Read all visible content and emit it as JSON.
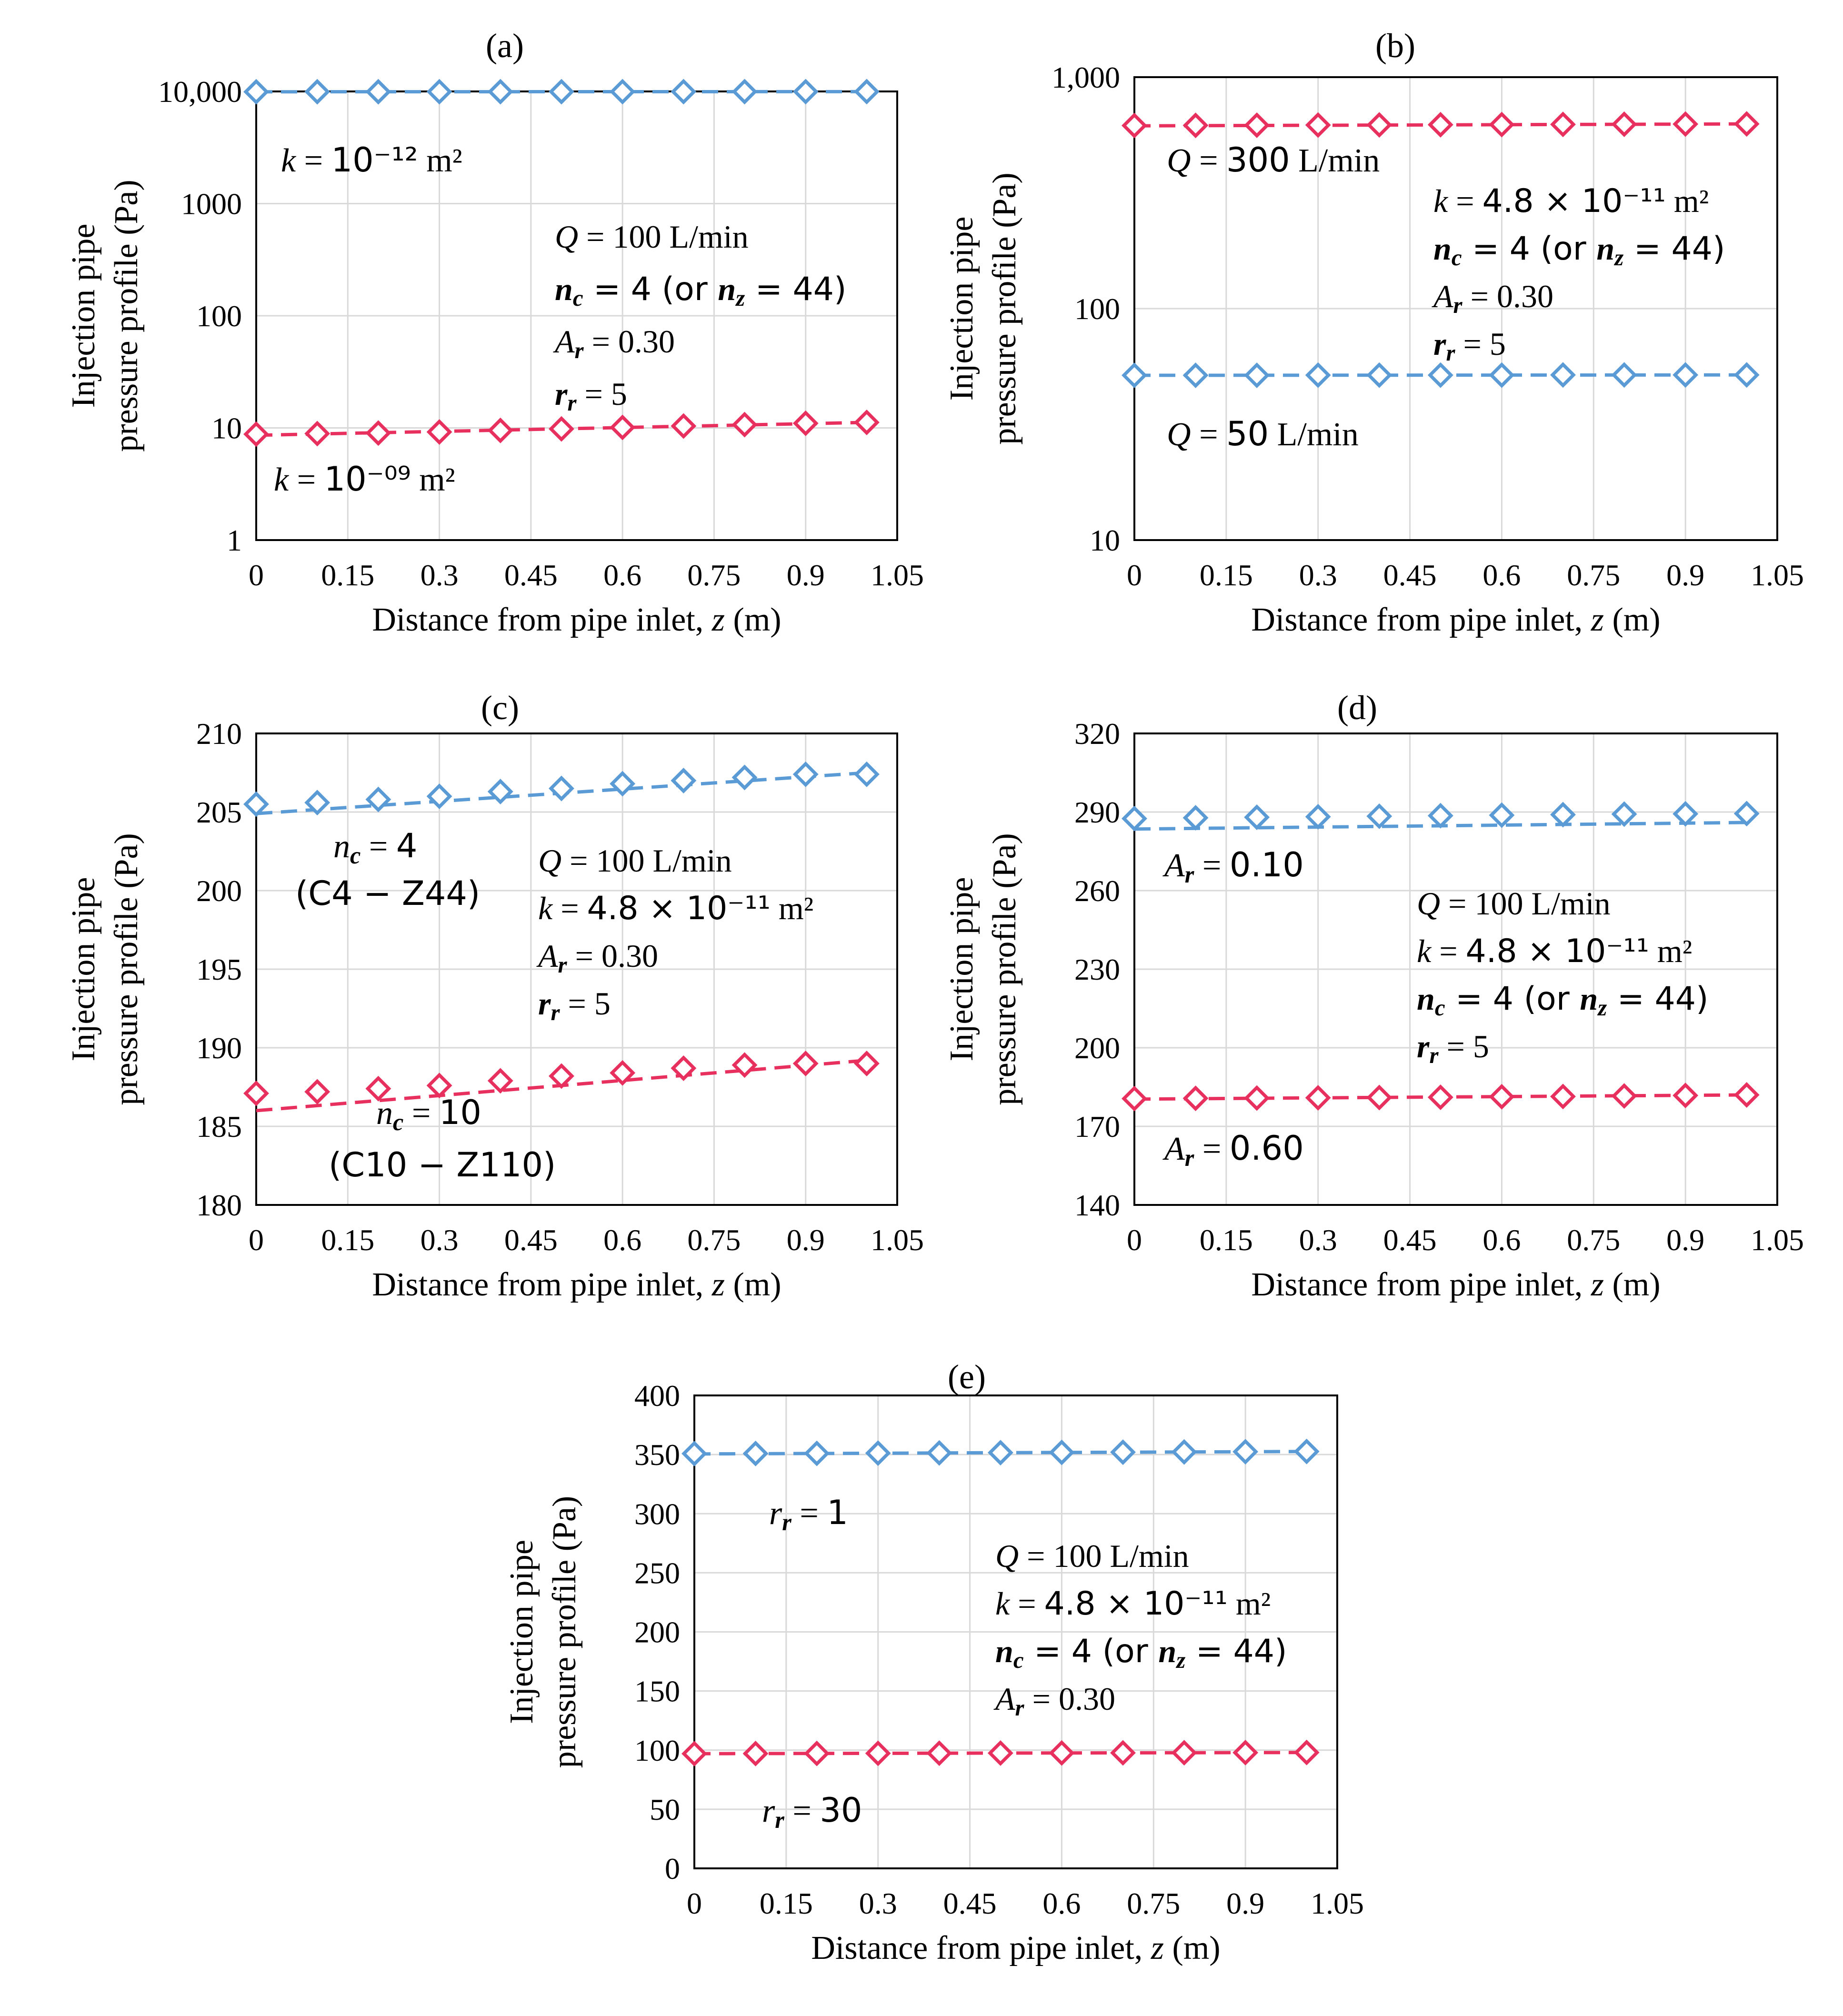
{
  "colors": {
    "blue": "#5b9bd5",
    "red": "#e8305f",
    "grid": "#d9d9d9",
    "frame": "#000000"
  },
  "x_ticks": [
    "0",
    "0.15",
    "0.3",
    "0.45",
    "0.6",
    "0.75",
    "0.9",
    "1.05"
  ],
  "chart_data": [
    {
      "type": "line",
      "panel_label": "(a)",
      "scale": "log",
      "xlabel": "Distance from pipe inlet, z (m)",
      "ylabel_line1": "Injection pipe",
      "ylabel_line2": "pressure profile (Pa)",
      "xlim": [
        0,
        1.05
      ],
      "ylim": [
        1,
        10000
      ],
      "y_ticks": [
        {
          "value": 1,
          "label": "1"
        },
        {
          "value": 10,
          "label": "10"
        },
        {
          "value": 100,
          "label": "100"
        },
        {
          "value": 1000,
          "label": "1000"
        },
        {
          "value": 10000,
          "label": "10,000"
        }
      ],
      "x": [
        0,
        0.1,
        0.2,
        0.3,
        0.4,
        0.5,
        0.6,
        0.7,
        0.8,
        0.9,
        1.0
      ],
      "series": [
        {
          "name": "k = 10^-12 m²",
          "color": "blue",
          "values": [
            9930,
            9940,
            9940,
            9945,
            9950,
            9950,
            9955,
            9955,
            9960,
            9960,
            9965
          ],
          "fit": [
            9930,
            9965
          ]
        },
        {
          "name": "k = 10^-09 m²",
          "color": "red",
          "values": [
            8.8,
            8.9,
            9.0,
            9.2,
            9.5,
            9.8,
            10.1,
            10.4,
            10.7,
            11.0,
            11.2
          ],
          "fit": [
            8.6,
            11.2
          ]
        }
      ],
      "annotations": {
        "s1_label": "k = 10⁻¹² m²",
        "s2_label": "k = 10⁻⁰⁹ m²",
        "params": [
          "Q = 100 L/min",
          "n_c = 4 (or n_z = 44)",
          "A_r = 0.30",
          "r_r = 5"
        ]
      }
    },
    {
      "type": "line",
      "panel_label": "(b)",
      "scale": "log",
      "xlabel": "Distance from pipe inlet, z (m)",
      "ylabel_line1": "Injection pipe",
      "ylabel_line2": "pressure profile (Pa)",
      "xlim": [
        0,
        1.05
      ],
      "ylim": [
        10,
        1000
      ],
      "y_ticks": [
        {
          "value": 10,
          "label": "10"
        },
        {
          "value": 100,
          "label": "100"
        },
        {
          "value": 1000,
          "label": "1,000"
        }
      ],
      "x": [
        0,
        0.1,
        0.2,
        0.3,
        0.4,
        0.5,
        0.6,
        0.7,
        0.8,
        0.9,
        1.0
      ],
      "series": [
        {
          "name": "Q = 300 L/min",
          "color": "red",
          "values": [
            618,
            619,
            620,
            621,
            622,
            623,
            624,
            625,
            626,
            627,
            628
          ],
          "fit": [
            616,
            628
          ]
        },
        {
          "name": "Q = 50 L/min",
          "color": "blue",
          "values": [
            51.5,
            51.5,
            51.5,
            51.6,
            51.6,
            51.6,
            51.6,
            51.7,
            51.7,
            51.7,
            51.7
          ],
          "fit": [
            51.5,
            51.7
          ]
        }
      ],
      "annotations": {
        "s1_label": "Q = 300 L/min",
        "s2_label": "Q = 50 L/min",
        "params": [
          "k = 4.8 × 10⁻¹¹ m²",
          "n_c = 4 (or n_z = 44)",
          "A_r = 0.30",
          "r_r = 5"
        ]
      }
    },
    {
      "type": "line",
      "panel_label": "(c)",
      "scale": "linear",
      "xlabel": "Distance from pipe inlet, z (m)",
      "ylabel_line1": "Injection pipe",
      "ylabel_line2": "pressure profile (Pa)",
      "xlim": [
        0,
        1.05
      ],
      "ylim": [
        180,
        210
      ],
      "y_ticks": [
        {
          "value": 180,
          "label": "180"
        },
        {
          "value": 185,
          "label": "185"
        },
        {
          "value": 190,
          "label": "190"
        },
        {
          "value": 195,
          "label": "195"
        },
        {
          "value": 200,
          "label": "200"
        },
        {
          "value": 205,
          "label": "205"
        },
        {
          "value": 210,
          "label": "210"
        }
      ],
      "x": [
        0,
        0.1,
        0.2,
        0.3,
        0.4,
        0.5,
        0.6,
        0.7,
        0.8,
        0.9,
        1.0
      ],
      "series": [
        {
          "name": "n_c = 4 (C4 - Z44)",
          "color": "blue",
          "values": [
            205.5,
            205.6,
            205.8,
            206.0,
            206.3,
            206.5,
            206.8,
            207.0,
            207.2,
            207.4,
            207.4
          ],
          "fit": [
            204.9,
            207.5
          ]
        },
        {
          "name": "n_c = 10 (C10 - Z110)",
          "color": "red",
          "values": [
            187.1,
            187.2,
            187.4,
            187.6,
            187.9,
            188.2,
            188.4,
            188.7,
            188.9,
            189.0,
            189.0
          ],
          "fit": [
            186.0,
            189.2
          ]
        }
      ],
      "annotations": {
        "s1_label": "n_c = 4",
        "s1_sub": "(C4 − Z44)",
        "s2_label": "n_c = 10",
        "s2_sub": "(C10 − Z110)",
        "params": [
          "Q = 100 L/min",
          "k = 4.8 × 10⁻¹¹ m²",
          "A_r = 0.30",
          "r_r = 5"
        ]
      }
    },
    {
      "type": "line",
      "panel_label": "(d)",
      "scale": "linear",
      "xlabel": "Distance from pipe inlet, z (m)",
      "ylabel_line1": "Injection pipe",
      "ylabel_line2": "pressure profile (Pa)",
      "xlim": [
        0,
        1.05
      ],
      "ylim": [
        140,
        320
      ],
      "y_ticks": [
        {
          "value": 140,
          "label": "140"
        },
        {
          "value": 170,
          "label": "170"
        },
        {
          "value": 200,
          "label": "200"
        },
        {
          "value": 230,
          "label": "230"
        },
        {
          "value": 260,
          "label": "260"
        },
        {
          "value": 290,
          "label": "290"
        },
        {
          "value": 320,
          "label": "320"
        }
      ],
      "x": [
        0,
        0.1,
        0.2,
        0.3,
        0.4,
        0.5,
        0.6,
        0.7,
        0.8,
        0.9,
        1.0
      ],
      "series": [
        {
          "name": "A_r = 0.10",
          "color": "blue",
          "values": [
            287.5,
            287.8,
            288.0,
            288.2,
            288.4,
            288.6,
            288.8,
            289.0,
            289.2,
            289.3,
            289.4
          ],
          "fit": [
            283.5,
            286.0
          ]
        },
        {
          "name": "A_r = 0.60",
          "color": "red",
          "values": [
            180.6,
            180.7,
            180.8,
            180.9,
            181.0,
            181.1,
            181.3,
            181.4,
            181.6,
            181.8,
            182.0
          ],
          "fit": [
            180.4,
            182.0
          ]
        }
      ],
      "annotations": {
        "s1_label": "A_r = 0.10",
        "s2_label": "A_r = 0.60",
        "params": [
          "Q = 100 L/min",
          "k = 4.8 × 10⁻¹¹ m²",
          "n_c = 4 (or n_z = 44)",
          "r_r = 5"
        ]
      }
    },
    {
      "type": "line",
      "panel_label": "(e)",
      "scale": "linear",
      "xlabel": "Distance from pipe inlet, z (m)",
      "ylabel_line1": "Injection pipe",
      "ylabel_line2": "pressure profile (Pa)",
      "xlim": [
        0,
        1.05
      ],
      "ylim": [
        0,
        400
      ],
      "y_ticks": [
        {
          "value": 0,
          "label": "0"
        },
        {
          "value": 50,
          "label": "50"
        },
        {
          "value": 100,
          "label": "100"
        },
        {
          "value": 150,
          "label": "150"
        },
        {
          "value": 200,
          "label": "200"
        },
        {
          "value": 250,
          "label": "250"
        },
        {
          "value": 300,
          "label": "300"
        },
        {
          "value": 350,
          "label": "350"
        },
        {
          "value": 400,
          "label": "400"
        }
      ],
      "x": [
        0,
        0.1,
        0.2,
        0.3,
        0.4,
        0.5,
        0.6,
        0.7,
        0.8,
        0.9,
        1.0
      ],
      "series": [
        {
          "name": "r_r = 1",
          "color": "blue",
          "values": [
            350.8,
            350.9,
            351.0,
            351.2,
            351.4,
            351.6,
            351.8,
            352.0,
            352.2,
            352.4,
            352.6
          ],
          "fit": [
            350.5,
            352.6
          ]
        },
        {
          "name": "r_r = 30",
          "color": "red",
          "values": [
            97.0,
            97.1,
            97.2,
            97.3,
            97.4,
            97.5,
            97.6,
            97.7,
            97.8,
            97.9,
            98.0
          ],
          "fit": [
            97.0,
            98.0
          ]
        }
      ],
      "annotations": {
        "s1_label": "r_r = 1",
        "s2_label": "r_r = 30",
        "params": [
          "Q = 100 L/min",
          "k = 4.8 × 10⁻¹¹ m²",
          "n_c = 4 (or n_z = 44)",
          "A_r = 0.30"
        ]
      }
    }
  ]
}
